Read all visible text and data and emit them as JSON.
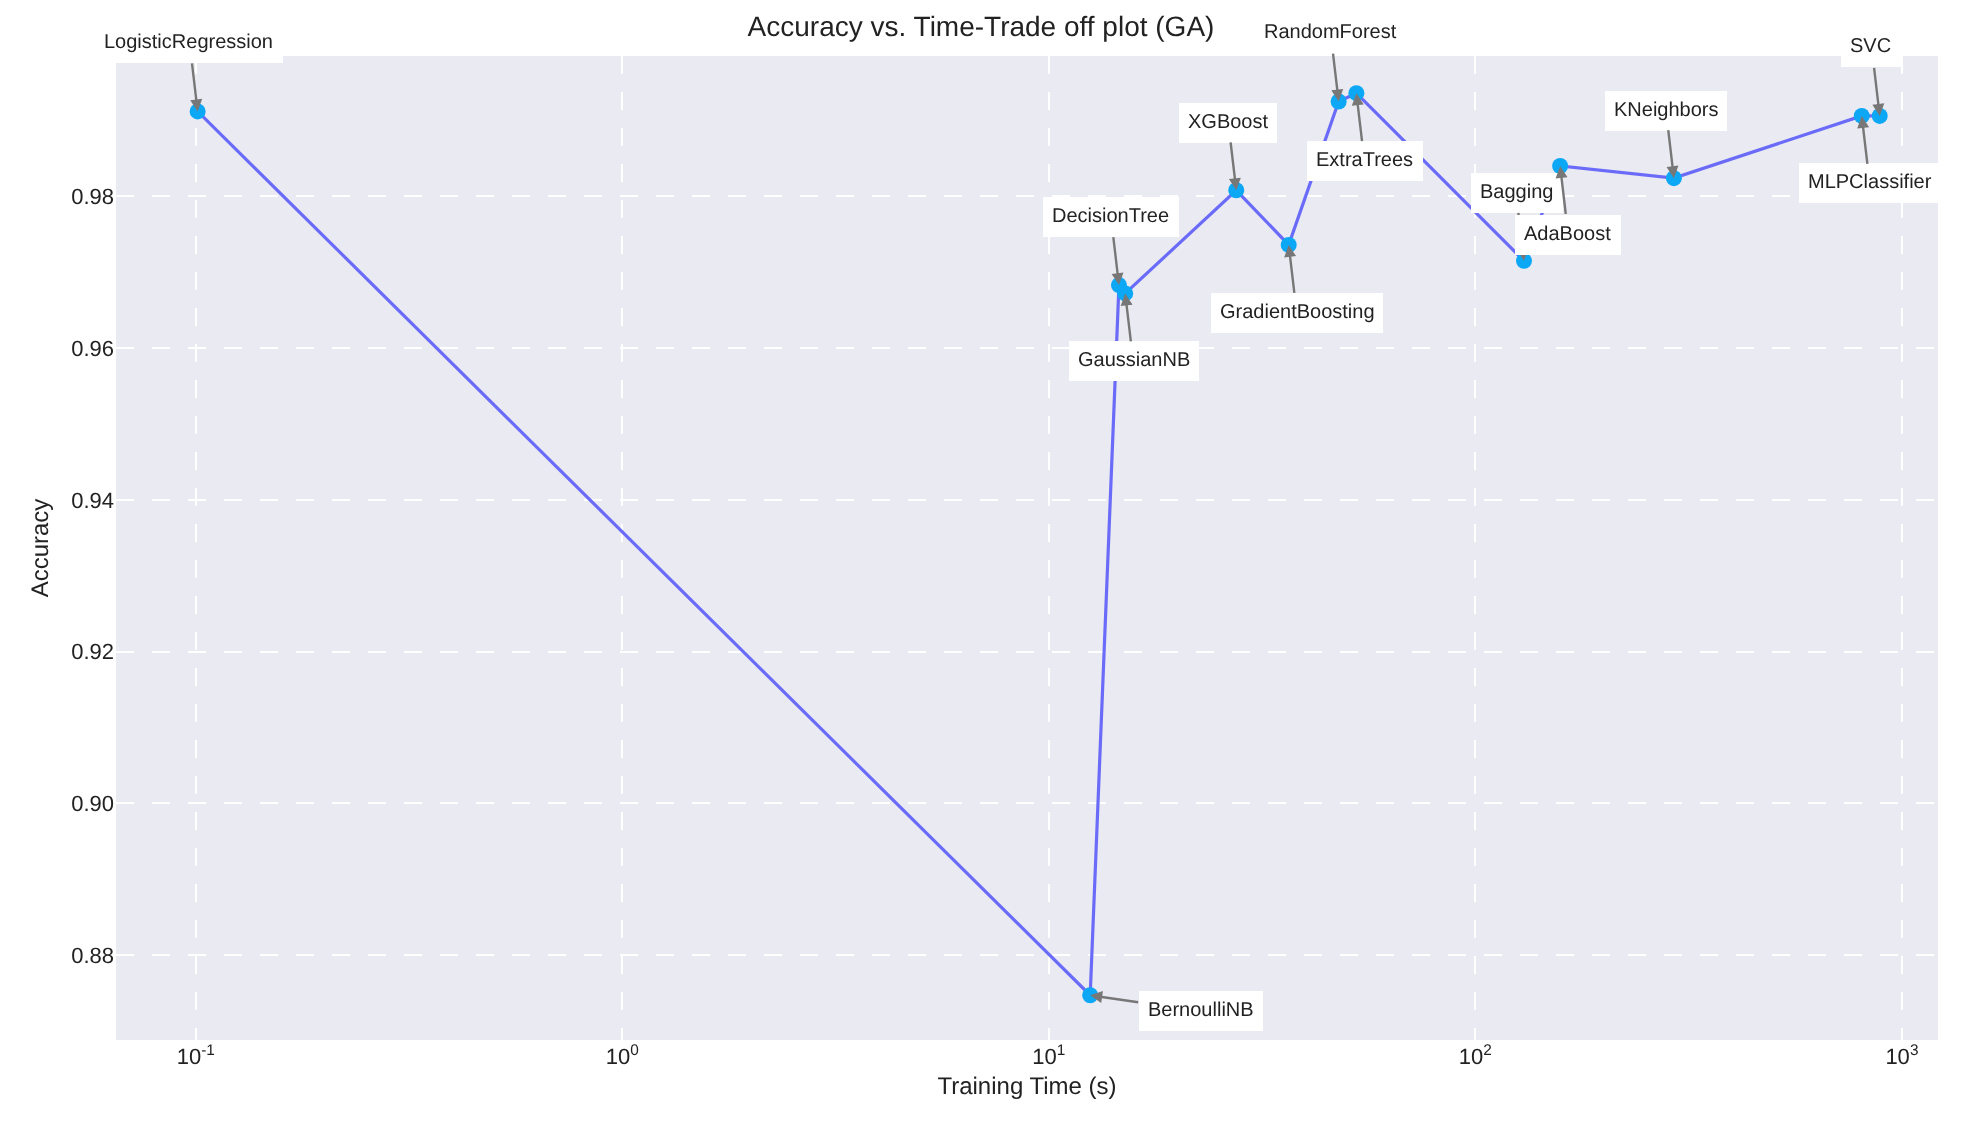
{
  "chart_data": {
    "type": "line",
    "title": "Accuracy vs. Time-Trade off plot (GA)",
    "xlabel": "Training Time (s)",
    "ylabel": "Accuracy",
    "log": "x",
    "grid": true,
    "marker": "circle",
    "line_style": "solid",
    "xlim": [
      0.065,
      1215
    ],
    "ylim": [
      0.8688,
      0.9985
    ],
    "xticks": [
      {
        "value": 0.1,
        "label": "10$^{-1}$"
      },
      {
        "value": 1,
        "label": "10$^{0}$"
      },
      {
        "value": 10,
        "label": "10$^{1}$"
      },
      {
        "value": 100,
        "label": "10$^{2}$"
      },
      {
        "value": 1000,
        "label": "10$^{3}$"
      }
    ],
    "yticks": [
      {
        "value": 0.88,
        "label": "0.88"
      },
      {
        "value": 0.9,
        "label": "0.90"
      },
      {
        "value": 0.92,
        "label": "0.92"
      },
      {
        "value": 0.94,
        "label": "0.94"
      },
      {
        "value": 0.96,
        "label": "0.96"
      },
      {
        "value": 0.98,
        "label": "0.98"
      }
    ],
    "series": [
      {
        "color": "#6b6bfa",
        "colors": [
          "#0ca8f5",
          "#0ca8f5",
          "#0ca8f5",
          "#0ca8f5",
          "#0ca8f5",
          "#0ca8f5",
          "#0ca8f5",
          "#0ca8f5",
          "#0ca8f5",
          "#0ca8f5",
          "#0ca8f5",
          "#0ca8f5",
          "#0ca8f5"
        ],
        "x": [
          0.101,
          12.5,
          14.6,
          15.1,
          27.5,
          36.5,
          47.8,
          52.6,
          130,
          158,
          292,
          805,
          887
        ],
        "values": [
          0.9912,
          0.8747,
          0.9683,
          0.9672,
          0.9808,
          0.9736,
          0.9925,
          0.9936,
          0.9715,
          0.984,
          0.9824,
          0.9906,
          0.9906
        ]
      }
    ],
    "annotations": [
      {
        "text": "LogisticRegression",
        "x": 0.101,
        "y": 0.9912
      },
      {
        "text": "BernoulliNB",
        "x": 12.5,
        "y": 0.8747
      },
      {
        "text": "DecisionTree",
        "x": 14.6,
        "y": 0.9683
      },
      {
        "text": "GaussianNB",
        "x": 15.1,
        "y": 0.9672
      },
      {
        "text": "XGBoost",
        "x": 27.5,
        "y": 0.9808
      },
      {
        "text": "GradientBoosting",
        "x": 36.5,
        "y": 0.9736
      },
      {
        "text": "RandomForest",
        "x": 47.8,
        "y": 0.9925
      },
      {
        "text": "ExtraTrees",
        "x": 52.6,
        "y": 0.9936
      },
      {
        "text": "Bagging",
        "x": 130,
        "y": 0.9715
      },
      {
        "text": "AdaBoost",
        "x": 158,
        "y": 0.984
      },
      {
        "text": "KNeighbors",
        "x": 292,
        "y": 0.9824
      },
      {
        "text": "MLPClassifier",
        "x": 805,
        "y": 0.9906
      },
      {
        "text": "SVC",
        "x": 887,
        "y": 0.9906
      }
    ]
  }
}
